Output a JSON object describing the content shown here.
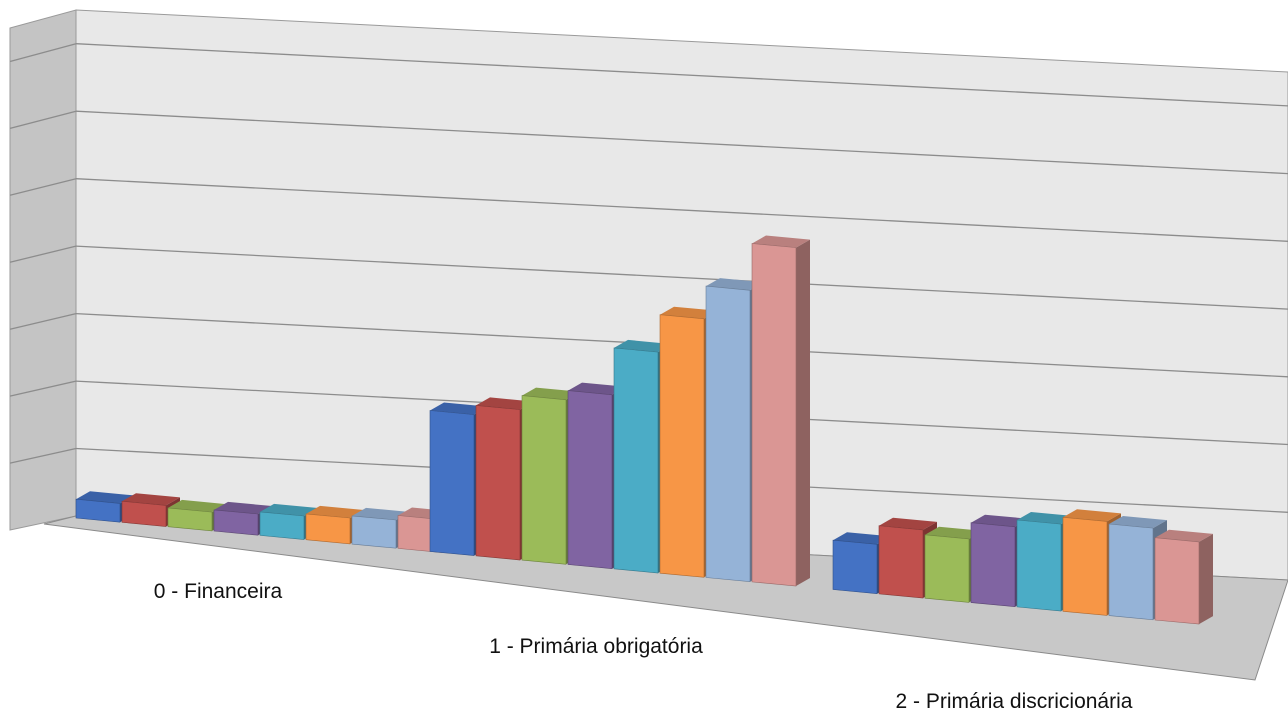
{
  "chart_data": {
    "type": "bar",
    "style": "3d-clustered-column",
    "title": "",
    "xlabel": "",
    "ylabel": "",
    "categories": [
      "0 - Financeira",
      "1 - Primária obrigatória",
      "2 - Primária discricionária"
    ],
    "ylim": [
      0,
      7.5
    ],
    "grid": true,
    "legend": "none",
    "series": [
      {
        "values": [
          0.4,
          3.0,
          1.05
        ],
        "color": "#4472C4"
      },
      {
        "values": [
          0.45,
          3.2,
          1.45
        ],
        "color": "#C0504D"
      },
      {
        "values": [
          0.4,
          3.5,
          1.35
        ],
        "color": "#9BBB59"
      },
      {
        "values": [
          0.45,
          3.7,
          1.7
        ],
        "color": "#8064A2"
      },
      {
        "values": [
          0.5,
          4.7,
          1.85
        ],
        "color": "#4BACC6"
      },
      {
        "values": [
          0.55,
          5.5,
          2.0
        ],
        "color": "#F79646"
      },
      {
        "values": [
          0.6,
          6.2,
          1.95
        ],
        "color": "#95B3D7"
      },
      {
        "values": [
          0.7,
          7.2,
          1.75
        ],
        "color": "#DA9694"
      }
    ]
  }
}
